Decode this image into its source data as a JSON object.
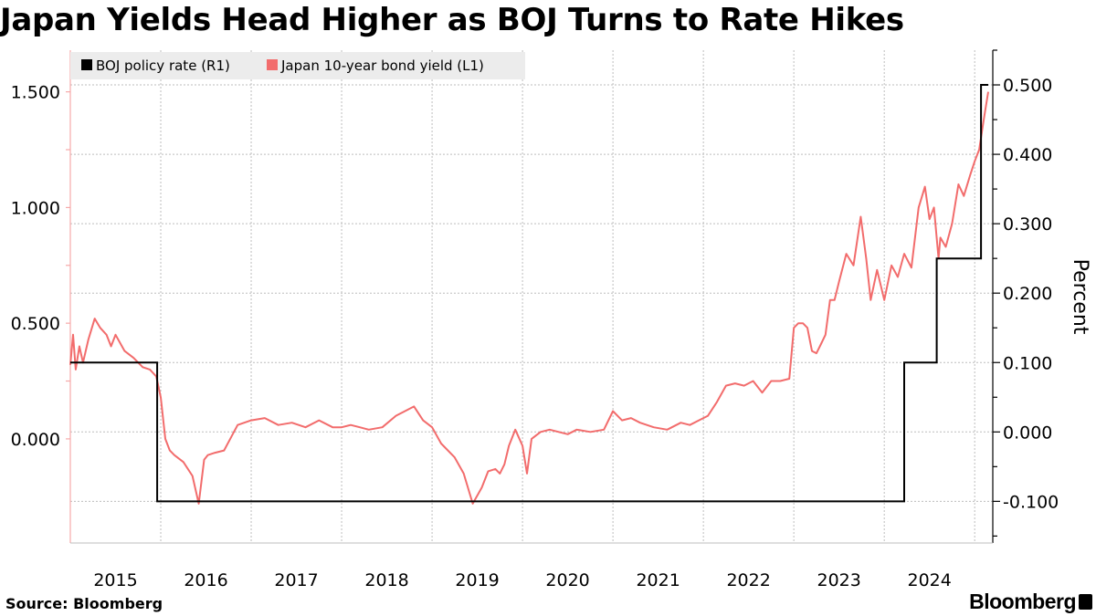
{
  "title": "Japan Yields Head Higher as BOJ Turns to Rate Hikes",
  "source": "Source: Bloomberg",
  "brand": "Bloomberg",
  "chart_data": {
    "type": "line",
    "title": "Japan Yields Head Higher as BOJ Turns to Rate Hikes",
    "xlabel": "",
    "ylabel_right": "Percent",
    "x_ticks": [
      "2015",
      "2016",
      "2017",
      "2018",
      "2019",
      "2020",
      "2021",
      "2022",
      "2023",
      "2024"
    ],
    "x_range": [
      2015.0,
      2025.2
    ],
    "y_left": {
      "range": [
        -0.45,
        1.68
      ],
      "ticks": [
        1.5,
        1.0,
        0.5,
        0.0
      ],
      "tick_labels": [
        "1.500",
        "1.000",
        "0.500",
        "0.000"
      ]
    },
    "y_right": {
      "range": [
        -0.16,
        0.55
      ],
      "ticks": [
        0.5,
        0.4,
        0.3,
        0.2,
        0.1,
        0.0,
        -0.1
      ],
      "tick_labels": [
        "0.500",
        "0.400",
        "0.300",
        "0.200",
        "0.100",
        "0.000",
        "-0.100"
      ]
    },
    "legend": [
      "BOJ policy rate (R1)",
      "Japan 10-year bond yield (L1)"
    ],
    "legend_position": "top-left",
    "colors": {
      "policy": "#000000",
      "yield": "#f26c6c",
      "grid": "#bdbdbd",
      "legend_bg": "#ececec"
    },
    "series": [
      {
        "name": "BOJ policy rate (R1)",
        "axis": "right",
        "style": "step",
        "x": [
          2015.0,
          2015.96,
          2015.96,
          2024.22,
          2024.22,
          2024.58,
          2024.58,
          2025.07,
          2025.07,
          2025.15
        ],
        "y": [
          0.1,
          0.1,
          -0.1,
          -0.1,
          0.1,
          0.1,
          0.25,
          0.25,
          0.5,
          0.5
        ]
      },
      {
        "name": "Japan 10-year bond yield (L1)",
        "axis": "left",
        "style": "line",
        "x": [
          2015.0,
          2015.03,
          2015.06,
          2015.1,
          2015.14,
          2015.2,
          2015.27,
          2015.33,
          2015.4,
          2015.45,
          2015.5,
          2015.6,
          2015.7,
          2015.8,
          2015.88,
          2015.95,
          2016.0,
          2016.05,
          2016.1,
          2016.15,
          2016.25,
          2016.35,
          2016.42,
          2016.48,
          2016.52,
          2016.6,
          2016.7,
          2016.85,
          2017.0,
          2017.15,
          2017.3,
          2017.45,
          2017.6,
          2017.75,
          2017.9,
          2018.0,
          2018.1,
          2018.2,
          2018.3,
          2018.45,
          2018.6,
          2018.7,
          2018.8,
          2018.9,
          2019.0,
          2019.1,
          2019.25,
          2019.35,
          2019.45,
          2019.55,
          2019.62,
          2019.7,
          2019.75,
          2019.8,
          2019.85,
          2019.92,
          2020.0,
          2020.05,
          2020.1,
          2020.2,
          2020.3,
          2020.4,
          2020.5,
          2020.6,
          2020.75,
          2020.9,
          2021.0,
          2021.1,
          2021.2,
          2021.3,
          2021.45,
          2021.6,
          2021.75,
          2021.85,
          2021.95,
          2022.05,
          2022.15,
          2022.25,
          2022.35,
          2022.45,
          2022.55,
          2022.65,
          2022.75,
          2022.85,
          2022.95,
          2023.0,
          2023.05,
          2023.1,
          2023.15,
          2023.2,
          2023.25,
          2023.3,
          2023.35,
          2023.4,
          2023.45,
          2023.5,
          2023.58,
          2023.66,
          2023.74,
          2023.8,
          2023.85,
          2023.92,
          2024.0,
          2024.08,
          2024.15,
          2024.22,
          2024.3,
          2024.38,
          2024.45,
          2024.5,
          2024.55,
          2024.6,
          2024.62,
          2024.68,
          2024.75,
          2024.82,
          2024.88,
          2024.95,
          2025.0,
          2025.05,
          2025.1,
          2025.15
        ],
        "y": [
          0.32,
          0.45,
          0.3,
          0.4,
          0.33,
          0.43,
          0.52,
          0.48,
          0.45,
          0.4,
          0.45,
          0.38,
          0.35,
          0.31,
          0.3,
          0.27,
          0.18,
          0.0,
          -0.05,
          -0.07,
          -0.1,
          -0.16,
          -0.28,
          -0.09,
          -0.07,
          -0.06,
          -0.05,
          0.06,
          0.08,
          0.09,
          0.06,
          0.07,
          0.05,
          0.08,
          0.05,
          0.05,
          0.06,
          0.05,
          0.04,
          0.05,
          0.1,
          0.12,
          0.14,
          0.08,
          0.05,
          -0.02,
          -0.08,
          -0.15,
          -0.28,
          -0.21,
          -0.14,
          -0.13,
          -0.15,
          -0.11,
          -0.03,
          0.04,
          -0.03,
          -0.15,
          0.0,
          0.03,
          0.04,
          0.03,
          0.02,
          0.04,
          0.03,
          0.04,
          0.12,
          0.08,
          0.09,
          0.07,
          0.05,
          0.04,
          0.07,
          0.06,
          0.08,
          0.1,
          0.16,
          0.23,
          0.24,
          0.23,
          0.25,
          0.2,
          0.25,
          0.25,
          0.26,
          0.48,
          0.5,
          0.5,
          0.48,
          0.38,
          0.37,
          0.41,
          0.45,
          0.6,
          0.6,
          0.68,
          0.8,
          0.75,
          0.96,
          0.78,
          0.6,
          0.73,
          0.6,
          0.75,
          0.7,
          0.8,
          0.74,
          1.0,
          1.09,
          0.95,
          1.0,
          0.78,
          0.87,
          0.83,
          0.93,
          1.1,
          1.05,
          1.14,
          1.2,
          1.25,
          1.38,
          1.5
        ]
      }
    ]
  }
}
